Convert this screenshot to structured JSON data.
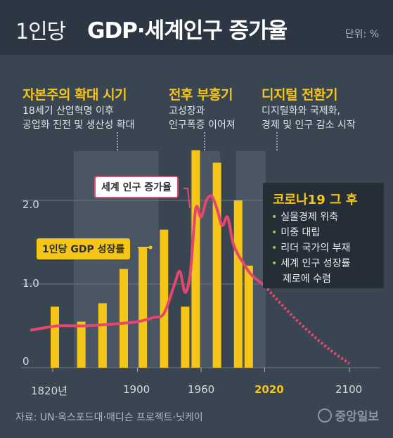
{
  "header": {
    "title_light": "1인당",
    "title_bold": "GDP·세계인구 증가율",
    "unit": "단위: %"
  },
  "eras": [
    {
      "title": "자본주의 확대 시기",
      "desc": [
        "18세기 산업혁명 이후",
        "공업화 진전 및 생산성 확대"
      ]
    },
    {
      "title": "전후 부흥기",
      "desc": [
        "고성장과",
        "인구폭증 이어져"
      ]
    },
    {
      "title": "디지털 전환기",
      "desc": [
        "디지털화와 국제화,",
        "경제 및 인구 감소 시작"
      ]
    }
  ],
  "labels": {
    "population": "세계 인구 증가율",
    "gdp": "1인당 GDP 성장률"
  },
  "corona": {
    "title": "코로나19 그 후",
    "items": [
      "실물경제 위축",
      "미중 대립",
      "리더 국가의 부재",
      "세계 인구 성장률"
    ],
    "item_cont": "제로에 수렴"
  },
  "source": "자료: UN·옥스포드대·매디슨 프로젝트·닛케이",
  "logo": "중앙일보",
  "colors": {
    "background": "#3a4552",
    "header": "#2d3743",
    "bar": "#f5c518",
    "line": "#e5466d",
    "band": "#4a5663"
  },
  "chart_data": {
    "type": "bar",
    "title": "1인당 GDP·세계인구 증가율",
    "unit": "단위: %",
    "x_ticks": [
      "1820년",
      "1900",
      "1960",
      "2020",
      "2100"
    ],
    "y_ticks": [
      "0",
      "1.0",
      "2.0"
    ],
    "ylim": [
      0,
      2.8
    ],
    "xlim": [
      1800,
      2110
    ],
    "series": [
      {
        "name": "1인당 GDP 성장률",
        "type": "bar",
        "x": [
          1822,
          1847,
          1867,
          1887,
          1905,
          1925,
          1945,
          1955,
          1975,
          1995,
          2005
        ],
        "values": [
          0.73,
          0.55,
          0.77,
          1.18,
          1.43,
          1.65,
          0.73,
          2.6,
          2.45,
          2.0,
          1.22
        ]
      },
      {
        "name": "세계 인구 증가율",
        "type": "line",
        "x": [
          1800,
          1825,
          1850,
          1875,
          1900,
          1915,
          1925,
          1935,
          1940,
          1945,
          1950,
          1955,
          1960,
          1965,
          1970,
          1975,
          1980,
          1985,
          1990,
          1995,
          2000,
          2005,
          2010,
          2020
        ],
        "values": [
          0.45,
          0.5,
          0.5,
          0.52,
          0.55,
          0.6,
          0.65,
          1.0,
          1.15,
          0.9,
          1.15,
          1.9,
          1.8,
          2.0,
          2.05,
          1.9,
          1.7,
          1.8,
          1.5,
          1.35,
          1.25,
          1.15,
          1.08,
          0.98
        ]
      },
      {
        "name": "세계 인구 증가율 전망",
        "type": "line-dashed",
        "x": [
          2020,
          2040,
          2060,
          2080,
          2100
        ],
        "values": [
          0.98,
          0.7,
          0.45,
          0.23,
          0.05
        ]
      }
    ],
    "highlight_bands": [
      [
        1840,
        1920
      ],
      [
        1950,
        1978
      ],
      [
        1993,
        2021
      ]
    ]
  }
}
